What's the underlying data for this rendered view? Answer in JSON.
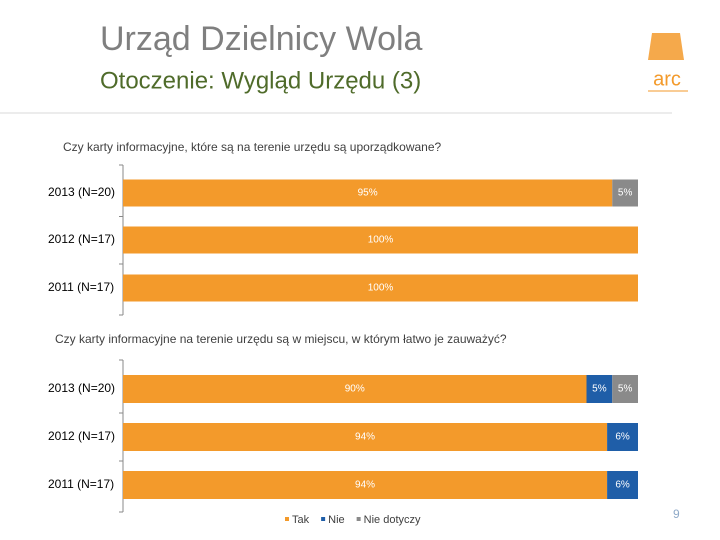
{
  "header": {
    "title": "Urząd Dzielnicy Wola",
    "subtitle": "Otoczenie: Wygląd Urzędu (3)",
    "logo": "arc"
  },
  "page_number": "9",
  "chart_data": [
    {
      "type": "stacked-barh",
      "title": "Czy karty informacyjne, które są na terenie urzędu są uporządkowane?",
      "categories": [
        "2013 (N=20)",
        "2012 (N=17)",
        "2011 (N=17)"
      ],
      "xlim": [
        0,
        100
      ],
      "series": [
        {
          "color": "#f39a2b",
          "values": [
            95,
            100,
            100
          ],
          "value_labels": [
            "95%",
            "100%",
            "100%"
          ]
        },
        {
          "color": "#1f5ea8",
          "values": [
            0,
            0,
            0
          ],
          "value_labels": [
            null,
            null,
            null
          ]
        },
        {
          "color": "#8a8a8a",
          "values": [
            5,
            0,
            0
          ],
          "value_labels": [
            "5%",
            null,
            null
          ]
        }
      ]
    },
    {
      "type": "stacked-barh",
      "title": "Czy karty informacyjne na terenie urzędu są w miejscu, w którym łatwo je zauważyć?",
      "categories": [
        "2013 (N=20)",
        "2012 (N=17)",
        "2011 (N=17)"
      ],
      "xlim": [
        0,
        100
      ],
      "legend": "bottom",
      "series": [
        {
          "name": "Tak",
          "color": "#f39a2b",
          "values": [
            90,
            94,
            94
          ],
          "value_labels": [
            "90%",
            "94%",
            "94%"
          ]
        },
        {
          "name": "Nie",
          "color": "#1f5ea8",
          "values": [
            5,
            6,
            6
          ],
          "value_labels": [
            "5%",
            "6%",
            "6%"
          ]
        },
        {
          "name": "Nie dotyczy",
          "color": "#8a8a8a",
          "values": [
            5,
            0,
            0
          ],
          "value_labels": [
            "5%",
            null,
            null
          ]
        }
      ]
    }
  ]
}
